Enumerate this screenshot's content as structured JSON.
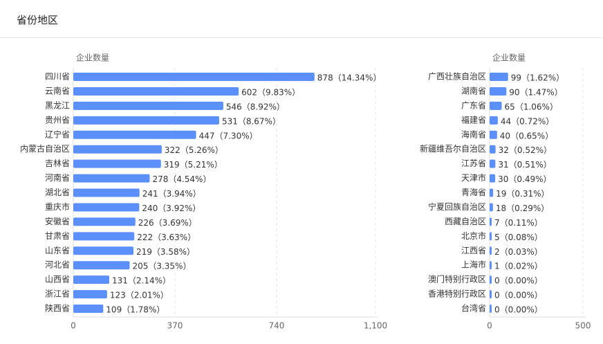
{
  "header": {
    "title": "省份地区"
  },
  "chart_data": [
    {
      "type": "bar",
      "orientation": "horizontal",
      "axis_label": "企业数量",
      "color": "#5b8ff9",
      "grid": true,
      "categories": [
        "四川省",
        "云南省",
        "黑龙江",
        "贵州省",
        "辽宁省",
        "内蒙古自治区",
        "吉林省",
        "河南省",
        "湖北省",
        "重庆市",
        "安徽省",
        "甘肃省",
        "山东省",
        "河北省",
        "山西省",
        "浙江省",
        "陕西省"
      ],
      "values": [
        878,
        602,
        546,
        531,
        447,
        322,
        319,
        278,
        241,
        240,
        226,
        222,
        219,
        205,
        131,
        123,
        109
      ],
      "value_labels": [
        "878（14.34%）",
        "602（9.83%）",
        "546（8.92%）",
        "531（8.67%）",
        "447（7.30%）",
        "322（5.26%）",
        "319（5.21%）",
        "278（4.54%）",
        "241（3.94%）",
        "240（3.92%）",
        "226（3.69%）",
        "222（3.63%）",
        "219（3.58%）",
        "205（3.35%）",
        "131（2.14%）",
        "123（2.01%）",
        "109（1.78%）"
      ],
      "xlim": [
        0,
        1100
      ],
      "xticks": [
        0,
        370,
        740,
        {
          "value": 1100,
          "label": "1,100"
        }
      ]
    },
    {
      "type": "bar",
      "orientation": "horizontal",
      "axis_label": "企业数量",
      "color": "#5b8ff9",
      "grid": true,
      "categories": [
        "广西壮族自治区",
        "湖南省",
        "广东省",
        "福建省",
        "海南省",
        "新疆维吾尔自治区",
        "江苏省",
        "天津市",
        "青海省",
        "宁夏回族自治区",
        "西藏自治区",
        "北京市",
        "江西省",
        "上海市",
        "澳门特别行政区",
        "香港特别行政区",
        "台湾省"
      ],
      "values": [
        99,
        90,
        65,
        44,
        40,
        32,
        31,
        30,
        19,
        18,
        7,
        5,
        2,
        1,
        0,
        0,
        0
      ],
      "value_labels": [
        "99（1.62%）",
        "90（1.47%）",
        "65（1.06%）",
        "44（0.72%）",
        "40（0.65%）",
        "32（0.52%）",
        "31（0.51%）",
        "30（0.49%）",
        "19（0.31%）",
        "18（0.29%）",
        "7（0.11%）",
        "5（0.08%）",
        "2（0.03%）",
        "1（0.02%）",
        "0（0.00%）",
        "0（0.00%）",
        "0（0.00%）"
      ],
      "xlim": [
        0,
        500
      ],
      "xticks": [
        0,
        500
      ]
    }
  ]
}
